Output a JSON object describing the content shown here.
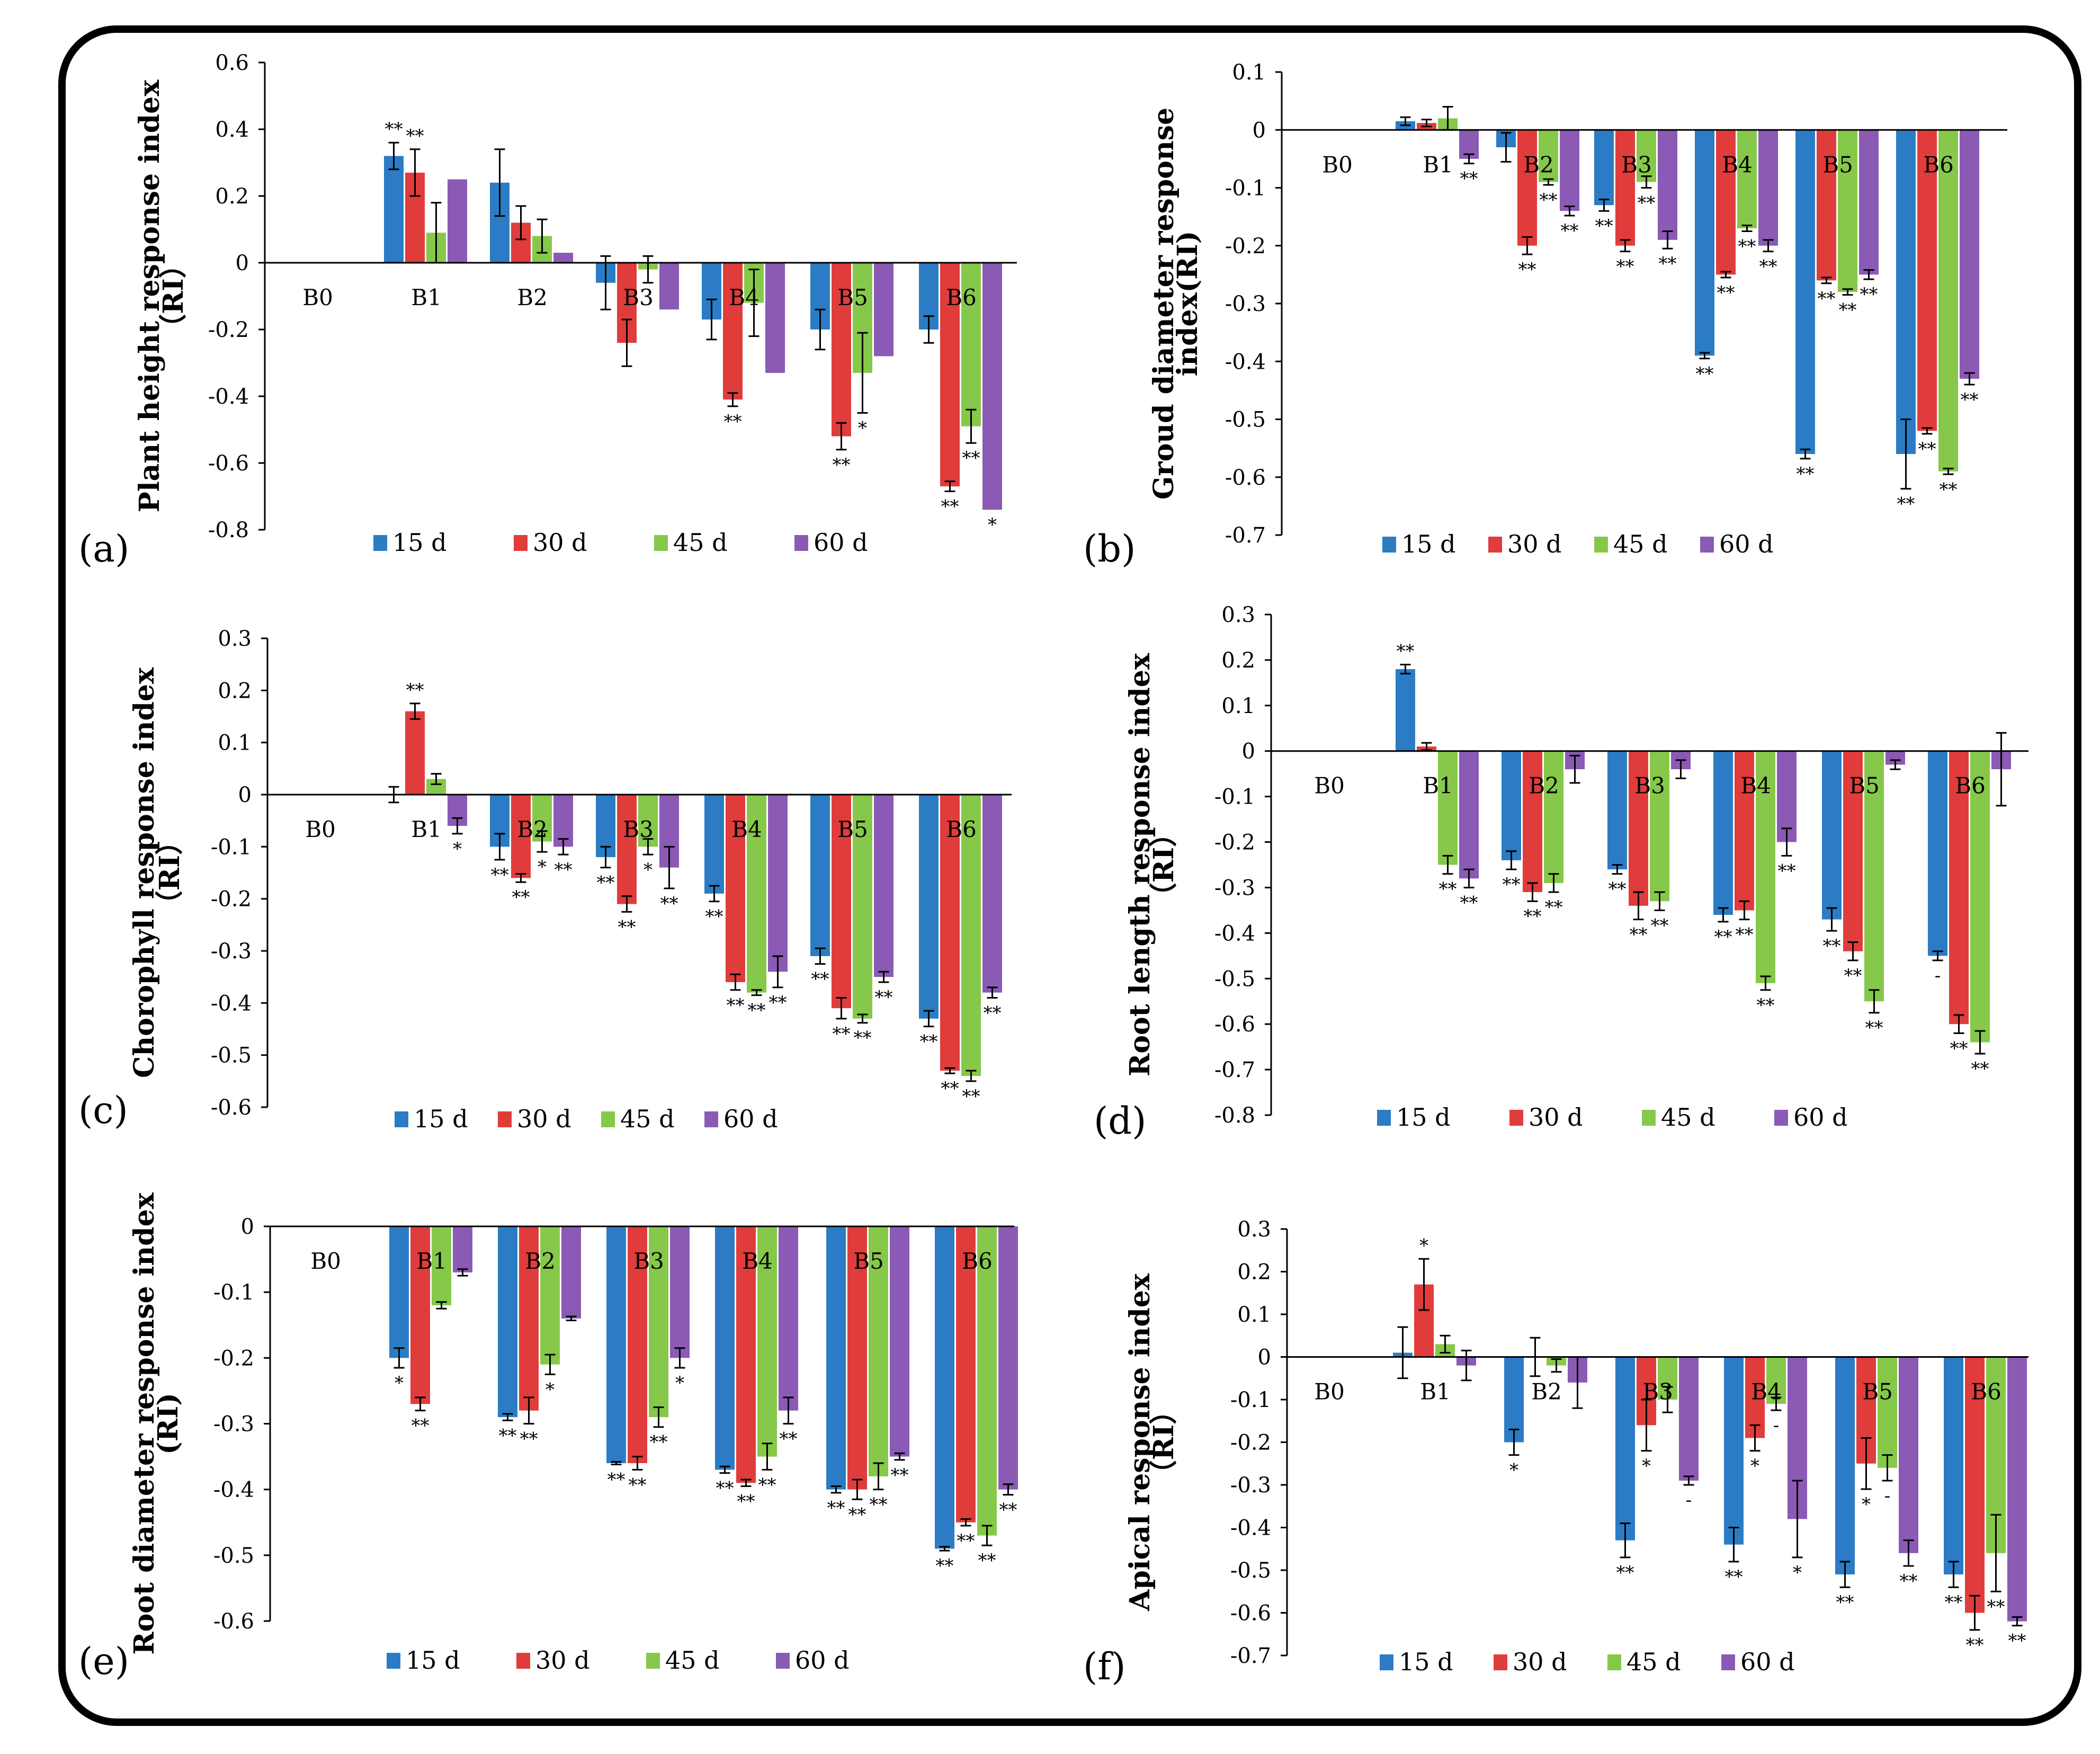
{
  "colors": {
    "15 d": "#2b7cc4",
    "30 d": "#e03c3c",
    "45 d": "#86c84a",
    "60 d": "#8a5ab4",
    "axis": "#000000"
  },
  "chart_data": [
    {
      "type": "bar",
      "panel": "(a)",
      "ylabel": [
        "Plant height response index",
        "（RI）"
      ],
      "ylim": [
        -0.8,
        0.6
      ],
      "yticks": [
        "0.6",
        "0.4",
        "0.2",
        "0",
        "-0.2",
        "-0.4",
        "-0.6",
        "-0.8"
      ],
      "ytick_values": [
        0.6,
        0.4,
        0.2,
        0,
        -0.2,
        -0.4,
        -0.6,
        -0.8
      ],
      "categories": [
        "B0",
        "B1",
        "B2",
        "B3",
        "B4",
        "B5",
        "B6"
      ],
      "series": [
        {
          "name": "15 d",
          "values": [
            0,
            0.32,
            0.24,
            -0.06,
            -0.17,
            -0.2,
            -0.2
          ],
          "errors": [
            0,
            0.04,
            0.1,
            0.08,
            0.06,
            0.06,
            0.04
          ],
          "sig": [
            "",
            "**",
            "",
            "",
            "",
            "",
            ""
          ]
        },
        {
          "name": "30 d",
          "values": [
            0,
            0.27,
            0.12,
            -0.24,
            -0.41,
            -0.52,
            -0.67
          ],
          "errors": [
            0,
            0.07,
            0.05,
            0.07,
            0.02,
            0.04,
            0.015
          ],
          "sig": [
            "",
            "**",
            "",
            "",
            "**",
            "**",
            "**"
          ]
        },
        {
          "name": "45 d",
          "values": [
            0,
            0.09,
            0.08,
            -0.02,
            -0.12,
            -0.33,
            -0.49
          ],
          "errors": [
            0,
            0.09,
            0.05,
            0.04,
            0.1,
            0.12,
            0.05
          ],
          "sig": [
            "",
            "",
            "",
            "",
            "",
            "*",
            "**"
          ]
        },
        {
          "name": "60 d",
          "values": [
            0,
            0.25,
            0.03,
            -0.14,
            -0.33,
            -0.28,
            -0.74
          ],
          "errors": [
            0,
            0,
            0,
            0,
            0,
            0,
            0
          ],
          "sig": [
            "",
            "",
            "",
            "",
            "",
            "",
            "*"
          ]
        }
      ]
    },
    {
      "type": "bar",
      "panel": "(b)",
      "ylabel": [
        "Groud diameter response",
        "index(RI)"
      ],
      "ylim": [
        -0.7,
        0.1
      ],
      "yticks": [
        "0.1",
        "0",
        "-0.1",
        "-0.2",
        "-0.3",
        "-0.4",
        "-0.5",
        "-0.6",
        "-0.7"
      ],
      "ytick_values": [
        0.1,
        0,
        -0.1,
        -0.2,
        -0.3,
        -0.4,
        -0.5,
        -0.6,
        -0.7
      ],
      "categories": [
        "B0",
        "B1",
        "B2",
        "B3",
        "B4",
        "B5",
        "B6"
      ],
      "series": [
        {
          "name": "15 d",
          "values": [
            0,
            0.015,
            -0.03,
            -0.13,
            -0.39,
            -0.56,
            -0.56
          ],
          "errors": [
            0,
            0.007,
            0.025,
            0.01,
            0.005,
            0.008,
            0.06
          ],
          "sig": [
            "",
            "",
            "",
            "**",
            "**",
            "**",
            "**"
          ]
        },
        {
          "name": "30 d",
          "values": [
            0,
            0.012,
            -0.2,
            -0.2,
            -0.25,
            -0.26,
            -0.52
          ],
          "errors": [
            0,
            0.006,
            0.015,
            0.01,
            0.005,
            0.005,
            0.005
          ],
          "sig": [
            "",
            "",
            "**",
            "**",
            "**",
            "**",
            "**"
          ]
        },
        {
          "name": "45 d",
          "values": [
            0,
            0.02,
            -0.09,
            -0.09,
            -0.17,
            -0.28,
            -0.59
          ],
          "errors": [
            0,
            0.02,
            0.005,
            0.01,
            0.005,
            0.005,
            0.005
          ],
          "sig": [
            "",
            "",
            "**",
            "**",
            "**",
            "**",
            "**"
          ]
        },
        {
          "name": "60 d",
          "values": [
            0,
            -0.05,
            -0.14,
            -0.19,
            -0.2,
            -0.25,
            -0.43
          ],
          "errors": [
            0,
            0.008,
            0.008,
            0.015,
            0.01,
            0.008,
            0.01
          ],
          "sig": [
            "",
            "**",
            "**",
            "**",
            "**",
            "**",
            "**"
          ]
        }
      ]
    },
    {
      "type": "bar",
      "panel": "(c)",
      "ylabel": [
        "Chorophyll response index",
        "（RI）"
      ],
      "ylim": [
        -0.6,
        0.3
      ],
      "yticks": [
        "0.3",
        "0.2",
        "0.1",
        "0",
        "-0.1",
        "-0.2",
        "-0.3",
        "-0.4",
        "-0.5",
        "-0.6"
      ],
      "ytick_values": [
        0.3,
        0.2,
        0.1,
        0,
        -0.1,
        -0.2,
        -0.3,
        -0.4,
        -0.5,
        -0.6
      ],
      "categories": [
        "B0",
        "B1",
        "B2",
        "B3",
        "B4",
        "B5",
        "B6"
      ],
      "series": [
        {
          "name": "15 d",
          "values": [
            0,
            0.0,
            -0.1,
            -0.12,
            -0.19,
            -0.31,
            -0.43
          ],
          "errors": [
            0,
            0.015,
            0.025,
            0.02,
            0.015,
            0.015,
            0.015
          ],
          "sig": [
            "",
            "",
            "**",
            "**",
            "**",
            "**",
            "**"
          ]
        },
        {
          "name": "30 d",
          "values": [
            0,
            0.16,
            -0.16,
            -0.21,
            -0.36,
            -0.41,
            -0.53
          ],
          "errors": [
            0,
            0.015,
            0.008,
            0.015,
            0.015,
            0.02,
            0.005
          ],
          "sig": [
            "",
            "**",
            "**",
            "**",
            "**",
            "**",
            "**"
          ]
        },
        {
          "name": "45 d",
          "values": [
            0,
            0.03,
            -0.09,
            -0.1,
            -0.38,
            -0.43,
            -0.54
          ],
          "errors": [
            0,
            0.01,
            0.02,
            0.015,
            0.005,
            0.008,
            0.01
          ],
          "sig": [
            "",
            "",
            "*",
            "*",
            "**",
            "**",
            "**"
          ]
        },
        {
          "name": "60 d",
          "values": [
            0,
            -0.06,
            -0.1,
            -0.14,
            -0.34,
            -0.35,
            -0.38
          ],
          "errors": [
            0,
            0.015,
            0.015,
            0.04,
            0.03,
            0.01,
            0.01
          ],
          "sig": [
            "",
            "*",
            "**",
            "**",
            "**",
            "**",
            "**"
          ]
        }
      ]
    },
    {
      "type": "bar",
      "panel": "(d)",
      "ylabel": [
        "Root length response index",
        "（RI）"
      ],
      "ylim": [
        -0.8,
        0.3
      ],
      "yticks": [
        "0.3",
        "0.2",
        "0.1",
        "0",
        "-0.1",
        "-0.2",
        "-0.3",
        "-0.4",
        "-0.5",
        "-0.6",
        "-0.7",
        "-0.8"
      ],
      "ytick_values": [
        0.3,
        0.2,
        0.1,
        0,
        -0.1,
        -0.2,
        -0.3,
        -0.4,
        -0.5,
        -0.6,
        -0.7,
        -0.8
      ],
      "categories": [
        "B0",
        "B1",
        "B2",
        "B3",
        "B4",
        "B5",
        "B6"
      ],
      "series": [
        {
          "name": "15 d",
          "values": [
            0,
            0.18,
            -0.24,
            -0.26,
            -0.36,
            -0.37,
            -0.45
          ],
          "errors": [
            0,
            0.01,
            0.02,
            0.01,
            0.015,
            0.025,
            0.01
          ],
          "sig": [
            "",
            "**",
            "**",
            "**",
            "**",
            "**",
            "-"
          ]
        },
        {
          "name": "30 d",
          "values": [
            0,
            0.01,
            -0.31,
            -0.34,
            -0.35,
            -0.44,
            -0.6
          ],
          "errors": [
            0,
            0.008,
            0.02,
            0.03,
            0.02,
            0.02,
            0.02
          ],
          "sig": [
            "",
            "",
            "**",
            "**",
            "**",
            "**",
            "**"
          ]
        },
        {
          "name": "45 d",
          "values": [
            0,
            -0.25,
            -0.29,
            -0.33,
            -0.51,
            -0.55,
            -0.64
          ],
          "errors": [
            0,
            0.02,
            0.02,
            0.02,
            0.015,
            0.025,
            0.025
          ],
          "sig": [
            "",
            "**",
            "**",
            "**",
            "**",
            "**",
            "**"
          ]
        },
        {
          "name": "60 d",
          "values": [
            0,
            -0.28,
            -0.04,
            -0.04,
            -0.2,
            -0.03,
            -0.04
          ],
          "errors": [
            0,
            0.02,
            0.03,
            0.02,
            0.03,
            0.01,
            0.08
          ],
          "sig": [
            "",
            "**",
            "",
            "",
            "**",
            "",
            ""
          ]
        }
      ]
    },
    {
      "type": "bar",
      "panel": "(e)",
      "ylabel": [
        "Root diameter response index",
        "(RI)"
      ],
      "ylim": [
        -0.6,
        0
      ],
      "yticks": [
        "0",
        "-0.1",
        "-0.2",
        "-0.3",
        "-0.4",
        "-0.5",
        "-0.6"
      ],
      "ytick_values": [
        0,
        -0.1,
        -0.2,
        -0.3,
        -0.4,
        -0.5,
        -0.6
      ],
      "categories": [
        "B0",
        "B1",
        "B2",
        "B3",
        "B4",
        "B5",
        "B6"
      ],
      "series": [
        {
          "name": "15 d",
          "values": [
            0,
            -0.2,
            -0.29,
            -0.36,
            -0.37,
            -0.4,
            -0.49
          ],
          "errors": [
            0,
            0.015,
            0.005,
            0.002,
            0.005,
            0.005,
            0.003
          ],
          "sig": [
            "",
            "*",
            "**",
            "**",
            "**",
            "**",
            "**"
          ]
        },
        {
          "name": "30 d",
          "values": [
            0,
            -0.27,
            -0.28,
            -0.36,
            -0.39,
            -0.4,
            -0.45
          ],
          "errors": [
            0,
            0.01,
            0.02,
            0.01,
            0.005,
            0.015,
            0.005
          ],
          "sig": [
            "",
            "**",
            "**",
            "**",
            "**",
            "**",
            "**"
          ]
        },
        {
          "name": "45 d",
          "values": [
            0,
            -0.12,
            -0.21,
            -0.29,
            -0.35,
            -0.38,
            -0.47
          ],
          "errors": [
            0,
            0.005,
            0.015,
            0.015,
            0.02,
            0.02,
            0.015
          ],
          "sig": [
            "",
            "",
            "*",
            "**",
            "**",
            "**",
            "**"
          ]
        },
        {
          "name": "60 d",
          "values": [
            0,
            -0.07,
            -0.14,
            -0.2,
            -0.28,
            -0.35,
            -0.4
          ],
          "errors": [
            0,
            0.005,
            0.003,
            0.015,
            0.02,
            0.005,
            0.008
          ],
          "sig": [
            "",
            "",
            "",
            "*",
            "**",
            "**",
            "**"
          ]
        }
      ]
    },
    {
      "type": "bar",
      "panel": "(f)",
      "ylabel": [
        "Apical response index",
        "（RI）"
      ],
      "ylim": [
        -0.7,
        0.3
      ],
      "yticks": [
        "0.3",
        "0.2",
        "0.1",
        "0",
        "-0.1",
        "-0.2",
        "-0.3",
        "-0.4",
        "-0.5",
        "-0.6",
        "-0.7"
      ],
      "ytick_values": [
        0.3,
        0.2,
        0.1,
        0,
        -0.1,
        -0.2,
        -0.3,
        -0.4,
        -0.5,
        -0.6,
        -0.7
      ],
      "categories": [
        "B0",
        "B1",
        "B2",
        "B3",
        "B4",
        "B5",
        "B6"
      ],
      "series": [
        {
          "name": "15 d",
          "values": [
            0,
            0.01,
            -0.2,
            -0.43,
            -0.44,
            -0.51,
            -0.51
          ],
          "errors": [
            0,
            0.06,
            0.03,
            0.04,
            0.04,
            0.03,
            0.03
          ],
          "sig": [
            "",
            "",
            "*",
            "**",
            "**",
            "**",
            "**"
          ]
        },
        {
          "name": "30 d",
          "values": [
            0,
            0.17,
            -0.0,
            -0.16,
            -0.19,
            -0.25,
            -0.6
          ],
          "errors": [
            0,
            0.06,
            0.045,
            0.06,
            0.03,
            0.06,
            0.04
          ],
          "sig": [
            "",
            "*",
            "",
            "*",
            "*",
            "*",
            "**"
          ]
        },
        {
          "name": "45 d",
          "values": [
            0,
            0.03,
            -0.02,
            -0.1,
            -0.11,
            -0.26,
            -0.46
          ],
          "errors": [
            0,
            0.02,
            0.015,
            0.03,
            0.015,
            0.03,
            0.09
          ],
          "sig": [
            "",
            "",
            "",
            "",
            "-",
            "-",
            "**"
          ]
        },
        {
          "name": "60 d",
          "values": [
            0,
            -0.02,
            -0.06,
            -0.29,
            -0.38,
            -0.46,
            -0.62
          ],
          "errors": [
            0,
            0.035,
            0.06,
            0.01,
            0.09,
            0.03,
            0.01
          ],
          "sig": [
            "",
            "",
            "",
            "-",
            "*",
            "**",
            "**"
          ]
        }
      ]
    }
  ]
}
